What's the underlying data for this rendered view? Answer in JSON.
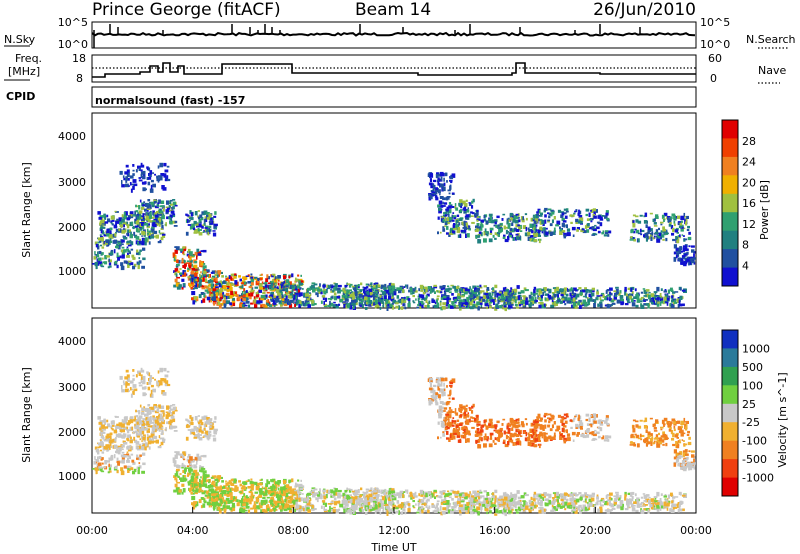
{
  "header": {
    "station": "Prince George (fitACF)",
    "beam": "Beam 14",
    "date": "26/Jun/2010"
  },
  "top_panels": {
    "nsky_label": "N.Sky",
    "nsky_ticks": [
      "10^5",
      "10^0"
    ],
    "nsearch_label": "N.Search",
    "nsearch_ticks": [
      "10^5",
      "10^0"
    ],
    "freq_label_1": "Freq.",
    "freq_label_2": "[MHz]",
    "freq_ticks": [
      "18",
      "8"
    ],
    "nave_label": "Nave",
    "nave_ticks": [
      "60",
      "0"
    ],
    "cpid_label": "CPID",
    "cpid_value": "normalsound (fast) -157"
  },
  "chart_data": [
    {
      "type": "heatmap",
      "name": "power",
      "ylabel": "Slant Range [km]",
      "ylim": [
        180,
        4500
      ],
      "yticks": [
        "4000",
        "3000",
        "2000",
        "1000"
      ],
      "colorbar_label": "Power [dB]",
      "colorbar_ticks": [
        "28",
        "24",
        "20",
        "16",
        "12",
        "8",
        "4"
      ],
      "colorbar_colors": [
        "#e00000",
        "#f04000",
        "#f08020",
        "#f0b000",
        "#a0c040",
        "#30a070",
        "#208080",
        "#2050a0",
        "#1010d0"
      ]
    },
    {
      "type": "heatmap",
      "name": "velocity",
      "ylabel": "Slant Range [km]",
      "ylim": [
        180,
        4500
      ],
      "yticks": [
        "4000",
        "3000",
        "2000",
        "1000"
      ],
      "colorbar_label": "Velocity [m s^-1]",
      "colorbar_ticks": [
        "1000",
        "500",
        "100",
        "25",
        "-25",
        "-100",
        "-500",
        "-1000"
      ],
      "colorbar_colors": [
        "#1030c0",
        "#2a7a9a",
        "#30a050",
        "#70d040",
        "#c8c8c8",
        "#f0b030",
        "#f08020",
        "#f04010",
        "#e00000"
      ]
    }
  ],
  "x_axis": {
    "label": "Time UT",
    "ticks": [
      "00:00",
      "04:00",
      "08:00",
      "12:00",
      "16:00",
      "20:00",
      "00:00"
    ]
  }
}
